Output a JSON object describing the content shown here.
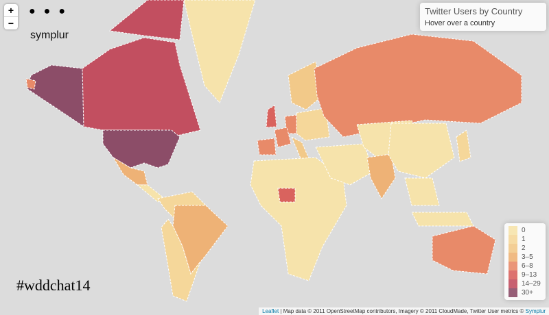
{
  "logo": "symplur",
  "hashtag": "#wddchat14",
  "zoom": {
    "in": "+",
    "out": "−"
  },
  "info": {
    "title": "Twitter Users by Country",
    "subtitle": "Hover over a country"
  },
  "legend": {
    "items": [
      {
        "label": "0",
        "color": "#f6e3ab"
      },
      {
        "label": "1",
        "color": "#f5d79a"
      },
      {
        "label": "2",
        "color": "#f2c989"
      },
      {
        "label": "3–5",
        "color": "#eeb276"
      },
      {
        "label": "6–8",
        "color": "#e88a69"
      },
      {
        "label": "9–13",
        "color": "#d9635e"
      },
      {
        "label": "14–29",
        "color": "#c24f60"
      },
      {
        "label": "30+",
        "color": "#8c4d68"
      }
    ]
  },
  "attribution": {
    "leaflet": "Leaflet",
    "text": " | Map data © 2011 OpenStreetMap contributors, Imagery © 2011 CloudMade, Twitter User metrics © ",
    "symplur": "Symplur"
  }
}
